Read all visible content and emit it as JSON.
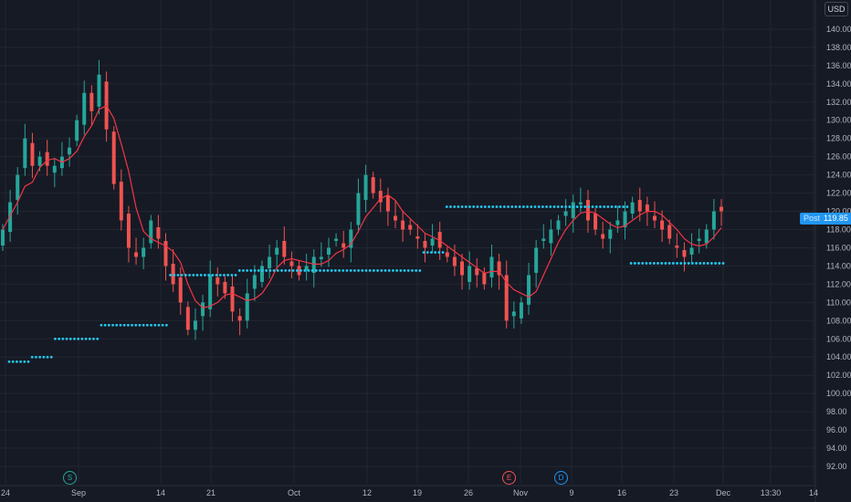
{
  "currency": "USD",
  "last_price": {
    "label": "Post",
    "value": "119.85"
  },
  "events": [
    {
      "letter": "S",
      "color": "#26a69a",
      "date": "Sep 3"
    },
    {
      "letter": "E",
      "color": "#ef5350",
      "date": "Nov 5"
    },
    {
      "letter": "D",
      "color": "#2196f3",
      "date": "Nov 7"
    }
  ],
  "colors": {
    "up": "#26a69a",
    "down": "#ef5350",
    "ma": "#f23645",
    "psar": "#22c8ef",
    "grid": "#222631",
    "bg": "#161a25"
  },
  "chart_data": {
    "type": "candlestick",
    "x_ticks": [
      "24",
      "Sep",
      "14",
      "21",
      "Oct",
      "12",
      "19",
      "26",
      "Nov",
      "9",
      "16",
      "23",
      "Dec",
      "13:30",
      "14"
    ],
    "y_ticks": [
      "92.00",
      "94.00",
      "96.00",
      "98.00",
      "100.00",
      "102.00",
      "104.00",
      "106.00",
      "108.00",
      "110.00",
      "112.00",
      "114.00",
      "116.00",
      "118.00",
      "120.00",
      "122.00",
      "124.00",
      "126.00",
      "128.00",
      "130.00",
      "132.00",
      "134.00",
      "136.00",
      "138.00",
      "140.00"
    ],
    "ylim": [
      91.4,
      143.2
    ],
    "series": [
      {
        "name": "price_path_closes",
        "values": [
          118,
          121,
          124,
          128,
          125,
          126,
          125,
          125,
          126,
          127,
          130,
          133,
          131,
          135,
          129,
          123,
          119,
          116,
          115,
          116,
          119,
          117,
          114,
          112,
          110,
          107,
          108,
          110,
          113,
          112,
          111,
          109,
          108,
          111,
          113,
          114,
          115,
          116,
          115,
          114,
          113,
          114,
          115,
          115,
          116,
          117,
          116,
          118,
          122,
          124,
          122,
          121,
          120,
          119,
          118,
          118,
          117,
          116,
          117,
          116,
          115,
          114,
          113,
          114,
          113,
          112,
          115,
          113,
          108,
          109,
          110,
          113,
          116,
          117,
          118,
          119,
          120,
          121,
          121,
          119,
          118,
          117,
          118,
          119,
          120,
          121,
          120,
          120,
          119,
          118,
          117,
          116,
          115,
          116,
          117,
          118,
          120,
          120
        ]
      },
      {
        "name": "psar_dots",
        "values": [
          103.5,
          104,
          106,
          106,
          107.5,
          107.5,
          107.5,
          113,
          113,
          113,
          113.5,
          113.5,
          113.5,
          113.5,
          113.5,
          113.5,
          113.5,
          113.5,
          115.5,
          120.5,
          120.5,
          120.5,
          120.5,
          120.5,
          120.5,
          120.5,
          120.5,
          114.3,
          114.3,
          114.3,
          114.3,
          114.3
        ]
      }
    ]
  }
}
